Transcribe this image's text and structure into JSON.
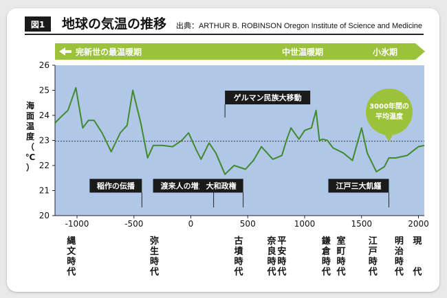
{
  "header": {
    "figure_label": "図1",
    "title": "地球の気温の推移",
    "source": "出典：ARTHUR B. ROBINSON  Oregon Institute of Science and Medicine"
  },
  "banner": {
    "arrow_left_label": "完新世の最温暖期",
    "mid_label": "中世温暖期",
    "right_label": "小氷期"
  },
  "colors": {
    "plot_bg": "#b1c7e8",
    "line": "#3f8a2b",
    "banner": "#9cc23c",
    "bubble": "#9cc23c"
  },
  "ylabel": "海面温度（℃）",
  "events": [
    {
      "label": "稲作の伝播",
      "year": -430,
      "tag_y": 270.5
    },
    {
      "label": "渡来人の増加",
      "year": 200,
      "tag_y": 270.5
    },
    {
      "label": "大和政権",
      "year": 460,
      "tag_y": 270.5
    },
    {
      "label": "江戸三大飢饉",
      "year": 1740,
      "tag_y": 270.5
    },
    {
      "label": "ゲルマン民族大移動",
      "year": 300,
      "tag_y": 142.0
    }
  ],
  "bubble": {
    "line1": "3000年間の",
    "line2": "平均温度"
  },
  "periods": [
    {
      "label": "縄文時代",
      "year": -1050
    },
    {
      "label": "弥生時代",
      "year": -320
    },
    {
      "label": "古墳時代",
      "year": 420
    },
    {
      "label": "奈良時代",
      "year": 710
    },
    {
      "label": "平安時代",
      "year": 800
    },
    {
      "label": "鎌倉時代",
      "year": 1190
    },
    {
      "label": "室町時代",
      "year": 1320
    },
    {
      "label": "江戸時代",
      "year": 1600
    },
    {
      "label": "明治時代",
      "year": 1830
    },
    {
      "label": "現",
      "year": 1990
    },
    {
      "label": "代",
      "year": 1990,
      "offset_row": 3
    }
  ],
  "chart_data": {
    "type": "line",
    "title": "地球の気温の推移",
    "ylabel": "海面温度（℃）",
    "xlabel": "",
    "xlim": [
      -1200,
      2060
    ],
    "ylim": [
      20,
      26
    ],
    "x_ticks": [
      -1000,
      -500,
      0,
      500,
      1000,
      1500,
      2000
    ],
    "y_ticks": [
      20,
      21,
      22,
      23,
      24,
      25,
      26
    ],
    "average": 22.97,
    "grid": false,
    "series": [
      {
        "values_x": [
          -1200,
          -1150,
          -1080,
          -1010,
          -950,
          -900,
          -850,
          -780,
          -700,
          -620,
          -560,
          -510,
          -440,
          -380,
          -330,
          -250,
          -160,
          -80,
          -20,
          50,
          90,
          160,
          220,
          300,
          380,
          480,
          550,
          620,
          720,
          800,
          840,
          880,
          950,
          1000,
          1060,
          1100,
          1130,
          1160,
          1200,
          1250,
          1340,
          1420,
          1500,
          1550,
          1630,
          1700,
          1740,
          1800,
          1900,
          2000,
          2060
        ],
        "values_y": [
          23.7,
          23.9,
          24.2,
          25.1,
          23.5,
          23.8,
          23.8,
          23.3,
          22.55,
          23.3,
          23.6,
          25.0,
          23.7,
          22.3,
          22.8,
          22.8,
          22.75,
          23.0,
          23.3,
          22.6,
          22.25,
          22.9,
          22.5,
          21.65,
          22.0,
          21.85,
          22.2,
          22.75,
          22.25,
          22.4,
          23.0,
          23.5,
          23.05,
          23.4,
          23.5,
          24.2,
          23.0,
          23.05,
          23.0,
          22.7,
          22.5,
          22.2,
          23.5,
          22.5,
          21.75,
          21.95,
          22.3,
          22.3,
          22.4,
          22.75,
          22.8
        ]
      }
    ]
  }
}
